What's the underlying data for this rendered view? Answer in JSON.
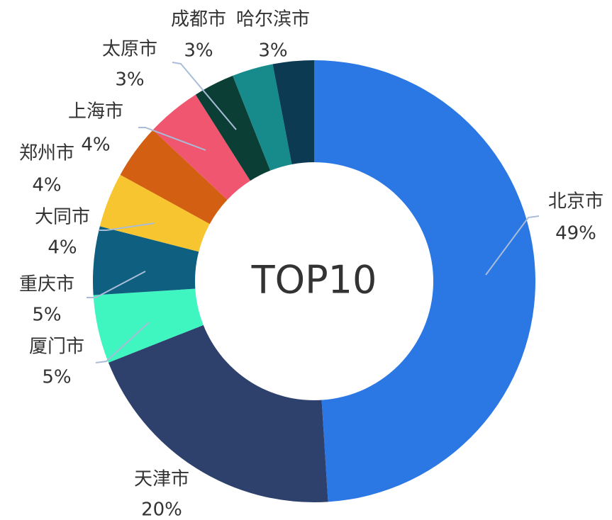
{
  "chart_data": {
    "type": "donut",
    "center_text": "TOP10",
    "categories": [
      "北京市",
      "天津市",
      "厦门市",
      "重庆市",
      "大同市",
      "郑州市",
      "上海市",
      "太原市",
      "成都市",
      "哈尔滨市"
    ],
    "values": [
      49,
      20,
      5,
      5,
      4,
      4,
      4,
      3,
      3,
      3
    ],
    "value_labels": [
      "49%",
      "20%",
      "5%",
      "5%",
      "4%",
      "4%",
      "4%",
      "3%",
      "3%",
      "3%"
    ],
    "colors": [
      "#2b78e4",
      "#2e416d",
      "#3ff5c0",
      "#0f6080",
      "#f7c530",
      "#d25f12",
      "#f0566f",
      "#0b3f35",
      "#178a8c",
      "#0b3a52"
    ]
  }
}
